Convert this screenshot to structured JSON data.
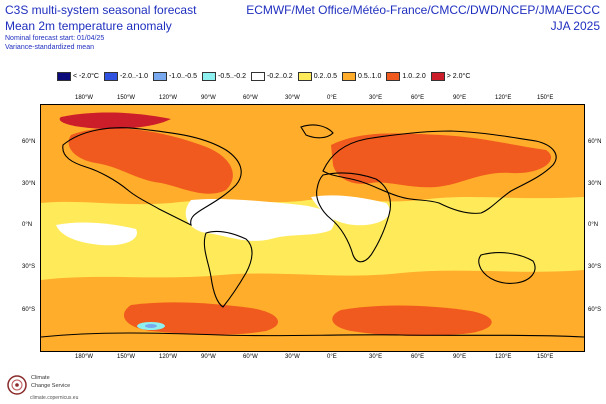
{
  "header": {
    "title_line1": "C3S multi-system seasonal forecast",
    "title_line2": "Mean 2m temperature anomaly",
    "meta_line1": "Nominal forecast start: 01/04/25",
    "meta_line2": "Variance-standardized mean",
    "centres": "ECMWF/Met Office/Météo-France/CMCC/DWD/NCEP/JMA/ECCC",
    "season": "JJA 2025"
  },
  "legend": [
    {
      "label": "< -2.0°C",
      "color": "#0a0a7a"
    },
    {
      "label": "-2.0..-1.0",
      "color": "#2f53e0"
    },
    {
      "label": "-1.0..-0.5",
      "color": "#79aaf0"
    },
    {
      "label": "-0.5..-0.2",
      "color": "#8ff0f0"
    },
    {
      "label": "-0.2..0.2",
      "color": "#ffffff"
    },
    {
      "label": "0.2..0.5",
      "color": "#ffeb5a"
    },
    {
      "label": "0.5..1.0",
      "color": "#ffad2a"
    },
    {
      "label": "1.0..2.0",
      "color": "#f05a1e"
    },
    {
      "label": "> 2.0°C",
      "color": "#cc1d2a"
    }
  ],
  "map": {
    "lon_labels": [
      "180°W",
      "150°W",
      "120°W",
      "90°W",
      "60°W",
      "30°W",
      "0°E",
      "30°E",
      "60°E",
      "90°E",
      "120°E",
      "150°E"
    ],
    "lat_labels": [
      "60°N",
      "30°N",
      "0°N",
      "30°S",
      "60°S"
    ]
  },
  "logo": {
    "line1": "Climate",
    "line2": "Change Service",
    "url": "climate.copernicus.eu"
  }
}
